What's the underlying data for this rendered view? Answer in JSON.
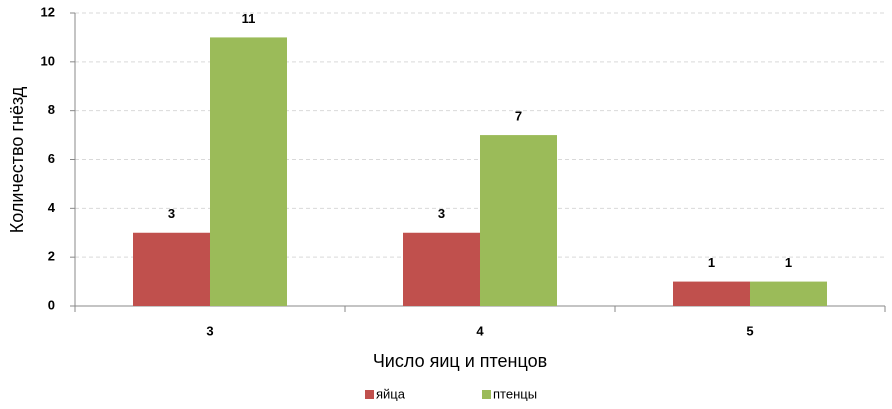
{
  "chart_data": {
    "type": "bar",
    "xlabel": "Число яиц и птенцов",
    "ylabel": "Количество гнёзд",
    "categories": [
      "3",
      "4",
      "5"
    ],
    "series": [
      {
        "name": "яйца",
        "color": "#c0504d",
        "values": [
          3,
          3,
          1
        ]
      },
      {
        "name": "птенцы",
        "color": "#9bbb59",
        "values": [
          11,
          7,
          1
        ]
      }
    ],
    "ylim": [
      0,
      12
    ],
    "yticks": [
      0,
      2,
      4,
      6,
      8,
      10,
      12
    ],
    "grid": true,
    "legend": "bottom"
  }
}
